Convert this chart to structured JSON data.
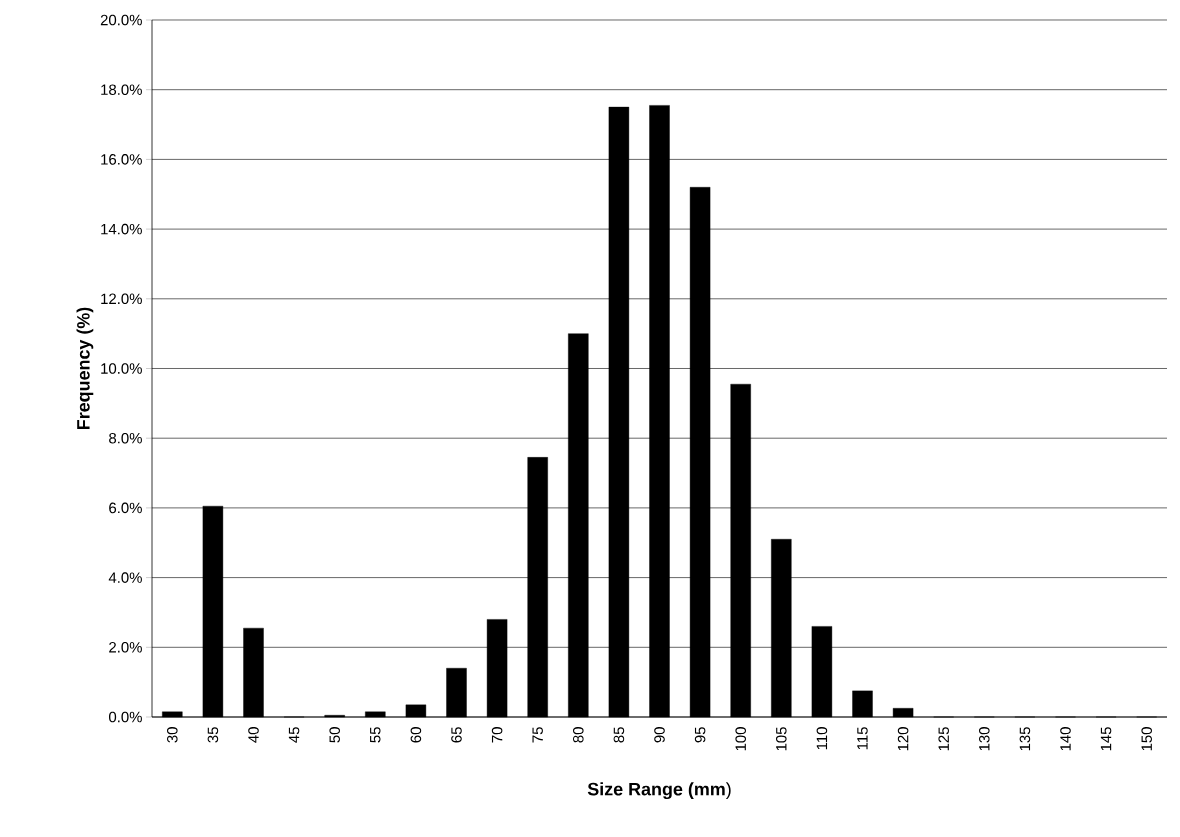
{
  "chart_data": {
    "type": "bar",
    "xlabel": "**Size Range (mm**)",
    "ylabel": "Frequency (%)",
    "categories": [
      "30",
      "35",
      "40",
      "45",
      "50",
      "55",
      "60",
      "65",
      "70",
      "75",
      "80",
      "85",
      "90",
      "95",
      "100",
      "105",
      "110",
      "115",
      "120",
      "125",
      "130",
      "135",
      "140",
      "145",
      "150"
    ],
    "values": [
      0.15,
      6.05,
      2.55,
      0,
      0.05,
      0.15,
      0.35,
      1.4,
      2.8,
      7.45,
      11.0,
      17.5,
      17.55,
      15.2,
      9.55,
      5.1,
      2.6,
      0.75,
      0.25,
      0,
      0,
      0,
      0,
      0,
      0
    ],
    "color": "#000000",
    "ylim": [
      0,
      20
    ],
    "yticks": [
      {
        "value": 0,
        "label": "0.0%"
      },
      {
        "value": 2,
        "label": "2.0%"
      },
      {
        "value": 4,
        "label": "4.0%"
      },
      {
        "value": 6,
        "label": "6.0%"
      },
      {
        "value": 8,
        "label": "8.0%"
      },
      {
        "value": 10,
        "label": "10.0%"
      },
      {
        "value": 12,
        "label": "12.0%"
      },
      {
        "value": 14,
        "label": "14.0%"
      },
      {
        "value": 16,
        "label": "16.0%"
      },
      {
        "value": 18,
        "label": "18.0%"
      },
      {
        "value": 20,
        "label": "20.0%"
      }
    ],
    "grid": "y"
  }
}
